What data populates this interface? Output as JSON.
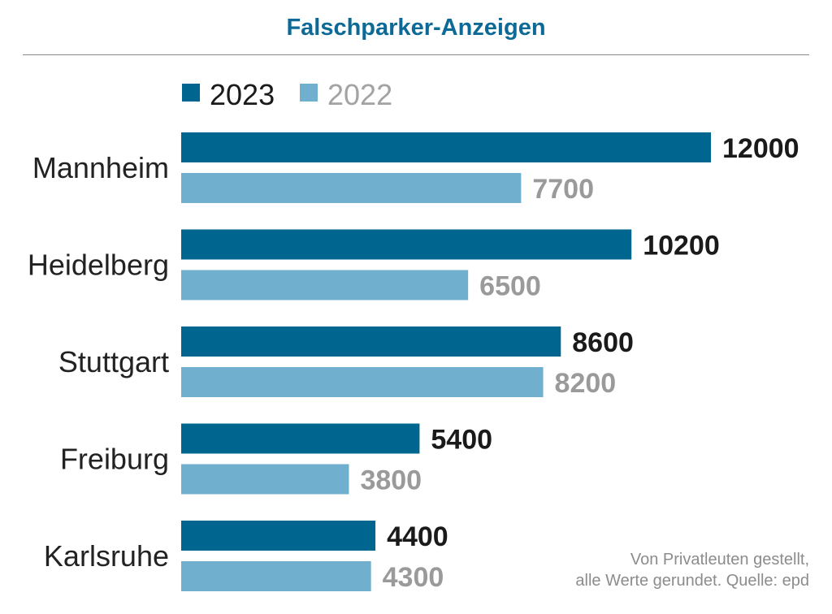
{
  "chart_data": {
    "type": "bar",
    "orientation": "horizontal",
    "title": "Falschparker-Anzeigen",
    "categories": [
      "Mannheim",
      "Heidelberg",
      "Stuttgart",
      "Freiburg",
      "Karlsruhe"
    ],
    "series": [
      {
        "name": "2023",
        "values": [
          12000,
          10200,
          8600,
          5400,
          4400
        ],
        "labels": [
          "12000",
          "10200",
          "8600",
          "5400",
          "4400"
        ],
        "color": "#00658f",
        "label_color": "#1a1a1a"
      },
      {
        "name": "2022",
        "values": [
          7700,
          6500,
          8200,
          3800,
          4300
        ],
        "labels": [
          "7700",
          "6500",
          "8200",
          "3800",
          "4300"
        ],
        "color": "#70afcd",
        "label_color": "#9a9a9a"
      }
    ],
    "legend_position": "top-left",
    "xlim": [
      0,
      12000
    ],
    "grid": false
  },
  "note": {
    "line1": "Von Privatleuten gestellt,",
    "line2": "alle Werte gerundet. Quelle: epd"
  }
}
